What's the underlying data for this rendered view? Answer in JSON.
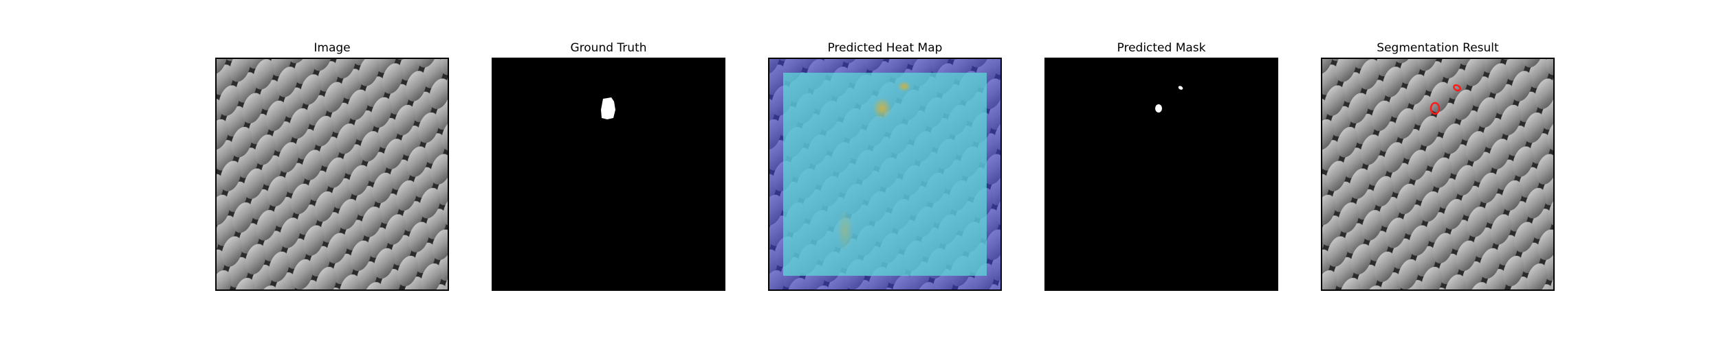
{
  "figure": {
    "panels": [
      {
        "title": "Image",
        "kind": "texture"
      },
      {
        "title": "Ground Truth",
        "kind": "ground-truth-mask"
      },
      {
        "title": "Predicted Heat Map",
        "kind": "heatmap-overlay"
      },
      {
        "title": "Predicted Mask",
        "kind": "predicted-mask"
      },
      {
        "title": "Segmentation Result",
        "kind": "segmentation-overlay"
      }
    ]
  },
  "colors": {
    "background": "#ffffff",
    "mask_foreground": "#ffffff",
    "mask_background": "#000000",
    "heatmap_low": "#3a3ad6",
    "heatmap_mid": "#5fd7d7",
    "heatmap_high": "#c9b53a",
    "contour": "#ff1a1a"
  }
}
